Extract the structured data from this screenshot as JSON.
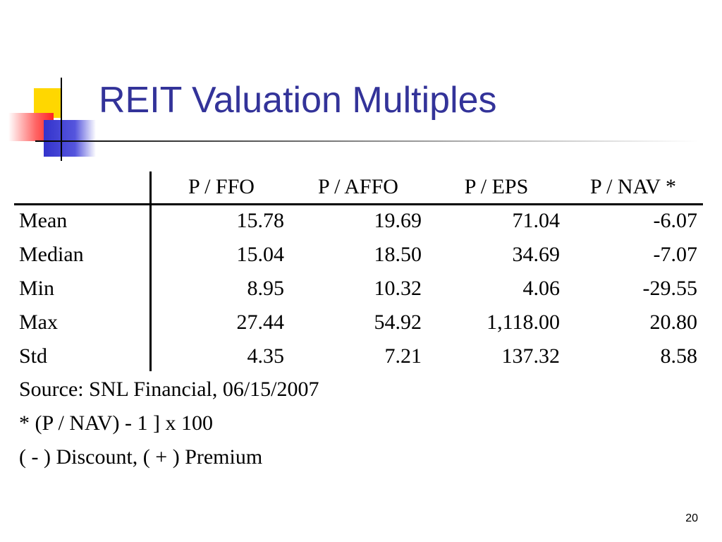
{
  "header": {
    "title": "REIT Valuation Multiples"
  },
  "table": {
    "columns": [
      "P / FFO",
      "P / AFFO",
      "P / EPS",
      "P / NAV *"
    ],
    "rows": [
      [
        "Mean",
        "15.78",
        "19.69",
        "71.04",
        "-6.07"
      ],
      [
        "Median",
        "15.04",
        "18.50",
        "34.69",
        "-7.07"
      ],
      [
        "Min",
        "8.95",
        "10.32",
        "4.06",
        "-29.55"
      ],
      [
        "Max",
        "27.44",
        "54.92",
        "1,118.00",
        "20.80"
      ],
      [
        "Std",
        "4.35",
        "7.21",
        "137.32",
        "8.58"
      ]
    ]
  },
  "notes": [
    "Source: SNL Financial, 06/15/2007",
    "* (P / NAV) - 1 ] x 100",
    "( - ) Discount, ( + ) Premium"
  ],
  "page_number": "20"
}
